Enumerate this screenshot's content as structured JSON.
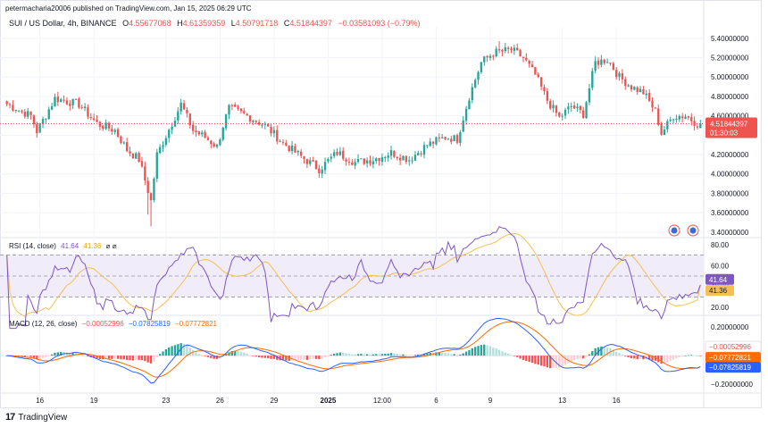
{
  "header": {
    "publisher": "petermacharia20006 published on TradingView.com, Jan 15, 2025 06:29 UTC",
    "symbol": "SUI / US Dollar, 4h, BINANCE",
    "ohlc": {
      "o_label": "O",
      "o": "4.55677068",
      "h_label": "H",
      "h": "4.61359359",
      "l_label": "L",
      "l": "4.50791718",
      "c_label": "C",
      "c": "4.51844397",
      "change": "−0.03581093 (−0.79%)"
    }
  },
  "footer": {
    "brand": "TradingView"
  },
  "colors": {
    "up": "#26a69a",
    "down": "#ef5350",
    "rsi": "#7e57c2",
    "rsi_ma": "#f5c050",
    "rsi_band": "#f0ecfa",
    "macd": "#2962ff",
    "signal": "#ff6d00",
    "hist_up_strong": "#26a69a",
    "hist_up_weak": "#b2dfdb",
    "hist_down_strong": "#ef5350",
    "hist_down_weak": "#ffcdd2",
    "grid": "#f0f3fa",
    "text": "#131722"
  },
  "chart_data": {
    "type": "candlestick",
    "price": {
      "ylim": [
        3.38,
        5.5
      ],
      "y_ticks": [
        "5.40000000",
        "5.20000000",
        "5.00000000",
        "4.80000000",
        "4.60000000",
        "4.40000000",
        "4.20000000",
        "4.00000000",
        "3.80000000",
        "3.60000000",
        "3.40000000"
      ],
      "y_tick_values": [
        5.4,
        5.2,
        5.0,
        4.8,
        4.6,
        4.4,
        4.2,
        4.0,
        3.8,
        3.6,
        3.4
      ],
      "last_price_label": "4.51844397",
      "last_price": 4.518,
      "countdown_label": "01:30:03",
      "anchors": [
        [
          0,
          4.72
        ],
        [
          8,
          4.6
        ],
        [
          10,
          4.44
        ],
        [
          16,
          4.78
        ],
        [
          24,
          4.72
        ],
        [
          30,
          4.52
        ],
        [
          36,
          4.45
        ],
        [
          40,
          4.25
        ],
        [
          44,
          4.15
        ],
        [
          48,
          3.72
        ],
        [
          50,
          4.2
        ],
        [
          54,
          4.46
        ],
        [
          58,
          4.72
        ],
        [
          62,
          4.45
        ],
        [
          66,
          4.38
        ],
        [
          70,
          4.28
        ],
        [
          72,
          4.5
        ],
        [
          74,
          4.68
        ],
        [
          80,
          4.6
        ],
        [
          86,
          4.5
        ],
        [
          92,
          4.32
        ],
        [
          98,
          4.18
        ],
        [
          104,
          4.05
        ],
        [
          110,
          4.22
        ],
        [
          116,
          4.12
        ],
        [
          122,
          4.15
        ],
        [
          128,
          4.22
        ],
        [
          134,
          4.15
        ],
        [
          140,
          4.3
        ],
        [
          146,
          4.38
        ],
        [
          150,
          4.36
        ],
        [
          154,
          4.8
        ],
        [
          158,
          5.15
        ],
        [
          162,
          5.25
        ],
        [
          168,
          5.28
        ],
        [
          172,
          5.2
        ],
        [
          176,
          5.02
        ],
        [
          180,
          4.76
        ],
        [
          184,
          4.58
        ],
        [
          188,
          4.7
        ],
        [
          192,
          4.62
        ],
        [
          196,
          5.15
        ],
        [
          200,
          5.18
        ],
        [
          204,
          5.0
        ],
        [
          208,
          4.9
        ],
        [
          212,
          4.84
        ],
        [
          216,
          4.65
        ],
        [
          218,
          4.42
        ],
        [
          222,
          4.6
        ],
        [
          226,
          4.6
        ],
        [
          230,
          4.52
        ]
      ]
    },
    "rsi": {
      "title": "RSI (14, close)",
      "value_label": "41.64",
      "ma_label": "41.36",
      "icons": "⌀ ⌀",
      "ylim": [
        15,
        85
      ],
      "y_ticks": [
        80,
        60,
        40,
        20
      ],
      "y_tick_labels": [
        "80.00",
        "60.00",
        "40.00",
        "20.00"
      ],
      "band": [
        30,
        70
      ],
      "mid": 50,
      "value": 41.64,
      "ma_value": 41.36
    },
    "macd": {
      "title": "MACD (12, 26, close)",
      "hist_label": "−0.00052996",
      "macd_label": "−0.07825819",
      "signal_label": "−0.07772821",
      "ylim": [
        -0.25,
        0.27
      ],
      "y_ticks": [
        0.2,
        -0.2
      ],
      "y_tick_labels": [
        "0.20000000",
        "−0.20000000"
      ],
      "hist_value": -0.00053,
      "macd_value": -0.07826,
      "signal_value": -0.07773
    },
    "x_axis": {
      "n_bars": 232,
      "ticks": [
        {
          "label": "16",
          "bar": 11
        },
        {
          "label": "19",
          "bar": 29
        },
        {
          "label": "23",
          "bar": 53
        },
        {
          "label": "26",
          "bar": 71
        },
        {
          "label": "29",
          "bar": 89
        },
        {
          "label": "2025",
          "bar": 107,
          "bold": true
        },
        {
          "label": "12:00",
          "bar": 125
        },
        {
          "label": "6",
          "bar": 143
        },
        {
          "label": "9",
          "bar": 161
        },
        {
          "label": "13",
          "bar": 185
        },
        {
          "label": "16",
          "bar": 203
        }
      ]
    }
  }
}
